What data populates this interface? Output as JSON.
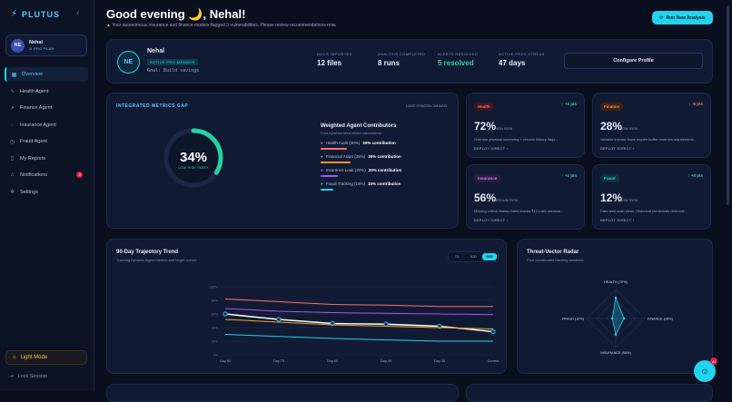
{
  "app": {
    "name": "PLUTUS"
  },
  "profile": {
    "initials": "NE",
    "name": "Nehal",
    "plan": "PRO PLAN"
  },
  "nav": [
    {
      "label": "Overview",
      "icon": "grid-icon",
      "glyph": "▦",
      "active": true
    },
    {
      "label": "Health Agent",
      "icon": "pulse-icon",
      "glyph": "∿"
    },
    {
      "label": "Finance Agent",
      "icon": "trend-icon",
      "glyph": "↗"
    },
    {
      "label": "Insurance Agent",
      "icon": "shield-icon",
      "glyph": "◌"
    },
    {
      "label": "Fraud Agent",
      "icon": "alert-icon",
      "glyph": "◷"
    },
    {
      "label": "My Reports",
      "icon": "file-icon",
      "glyph": "▯"
    },
    {
      "label": "Notifications",
      "icon": "bell-icon",
      "glyph": "♫",
      "badge": "3"
    },
    {
      "label": "Settings",
      "icon": "gear-icon",
      "glyph": "✲"
    }
  ],
  "light_mode_label": "Light Mode",
  "lock_label": "Lock Session",
  "header": {
    "title": "Good evening 🌙, Nehal!",
    "subtitle": "Your autonomous insurance and finance models flagged 3 vulnerabilities. Please review recommendations now.",
    "run_button": "Run New Analysis"
  },
  "user_card": {
    "initials": "NE",
    "name": "Nehal",
    "tag": "ACTIVE PRO MEMBER",
    "goal": "Goal: Build savings",
    "stats": [
      {
        "label": "DOCS IMPORTED",
        "value": "12 files"
      },
      {
        "label": "ANALYSIS COMPLETED",
        "value": "8 runs"
      },
      {
        "label": "ALERTS RESOLVED",
        "value": "5 resolved"
      },
      {
        "label": "ACTIVE PREV STREAK",
        "value": "47 days"
      }
    ],
    "configure": "Configure Profile"
  },
  "gap": {
    "title": "INTEGRATED METRICS GAP",
    "synced": "LAST SYNCED: 2H AGO",
    "percent": "34%",
    "percent_value": 34,
    "risk": "LOW RISK INDEX",
    "contrib_title": "Weighted Agent Contributors",
    "contrib_sub": "Four synchronized vector calculations",
    "contributors": [
      {
        "label": "Health Audit (30%)",
        "value": "30% contribution",
        "color": "#f87171"
      },
      {
        "label": "Financial Asset (35%)",
        "value": "35% contribution",
        "color": "#fb923c"
      },
      {
        "label": "Insurance Leak (20%)",
        "value": "20% contribution",
        "color": "#a855f7"
      },
      {
        "label": "Fraud Tracking (15%)",
        "value": "15% contribution",
        "color": "#22d3ee"
      }
    ]
  },
  "agents": [
    {
      "tag": "Health",
      "delta": "↑ +3 pts",
      "pct": "72%",
      "risk": "HIGH RISK",
      "desc": "Overdue physical screening + chronic history flags...",
      "deploy": "DEPLOY DIRECT  ›",
      "tag_color": "#f87171",
      "tag_bg": "#3a1622",
      "delta_color": "#34d399"
    },
    {
      "tag": "Finance",
      "delta": "↓ -5 pts",
      "pct": "28%",
      "risk": "LOW RISK",
      "desc": "Variable income flows require buffer reserves adjustments...",
      "deploy": "DEPLOY DIRECT  ›",
      "tag_color": "#fb923c",
      "tag_bg": "#3a2416",
      "delta_color": "#f87171"
    },
    {
      "tag": "Insurance",
      "delta": "↑ +1 pts",
      "pct": "56%",
      "risk": "MEDIUM RISK",
      "desc": "Missing critical illness riders leaves ₹12 Lakh medical...",
      "deploy": "DEPLOY DIRECT  ›",
      "tag_color": "#c084fc",
      "tag_bg": "#2a1a40",
      "delta_color": "#34d399"
    },
    {
      "tag": "Fraud",
      "delta": "↑ +8 pts",
      "pct": "12%",
      "risk": "LOW RISK",
      "desc": "Dark web scan clean. Historical credentials dormant...",
      "deploy": "DEPLOY DIRECT  ›",
      "tag_color": "#22d3ee",
      "tag_bg": "#0f2f3a",
      "delta_color": "#34d399"
    }
  ],
  "trend": {
    "title": "90-Day Trajectory Trend",
    "subtitle": "Tracking dynamic agent metrics and target curves",
    "ranges": [
      "7D",
      "30D",
      "90D"
    ],
    "active_range": "90D"
  },
  "chart_data": {
    "type": "line",
    "categories": [
      "Day 90",
      "Day 75",
      "Day 60",
      "Day 45",
      "Day 30",
      "Current"
    ],
    "y_ticks": [
      "100%",
      "80%",
      "60%",
      "40%",
      "20%",
      "0%"
    ],
    "ylim": [
      0,
      100
    ],
    "series": [
      {
        "values": [
          82,
          78,
          74,
          73,
          71,
          71
        ],
        "color": "#f87171"
      },
      {
        "values": [
          68,
          64,
          62,
          61,
          60,
          59
        ],
        "color": "#a855f7"
      },
      {
        "values": [
          60,
          52,
          46,
          45,
          42,
          34
        ],
        "color": "#ffffff",
        "markers": true
      },
      {
        "values": [
          52,
          48,
          44,
          42,
          40,
          38
        ],
        "color": "#f5a623"
      },
      {
        "values": [
          30,
          27,
          24,
          22,
          20,
          20
        ],
        "color": "#22d3ee"
      }
    ]
  },
  "radar": {
    "title": "Threat-Vector Radar",
    "subtitle": "Four coordinated tracking variables",
    "labels": [
      "HEALTH (72%)",
      "FINANCE (28%)",
      "INSURANCE (56%)",
      "FRAUD (12%)"
    ],
    "values": [
      72,
      28,
      56,
      12
    ]
  },
  "fab_badge": "AI"
}
